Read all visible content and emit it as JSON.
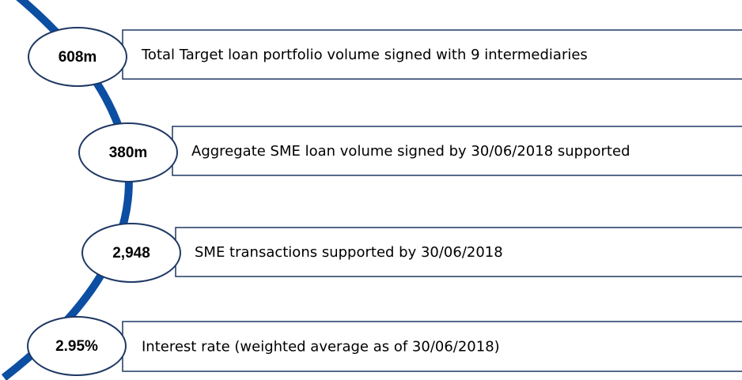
{
  "items": [
    {
      "value": "608m",
      "text": "Total Target loan portfolio volume signed with 9 intermediaries"
    },
    {
      "value": "380m",
      "text": "Aggregate SME loan volume signed by 30/06/2018 supported"
    },
    {
      "value": "2,948",
      "text": "SME transactions supported by 30/06/2018"
    },
    {
      "value": "2.95%",
      "text": "Interest rate (weighted average as of 30/06/2018)"
    }
  ]
}
